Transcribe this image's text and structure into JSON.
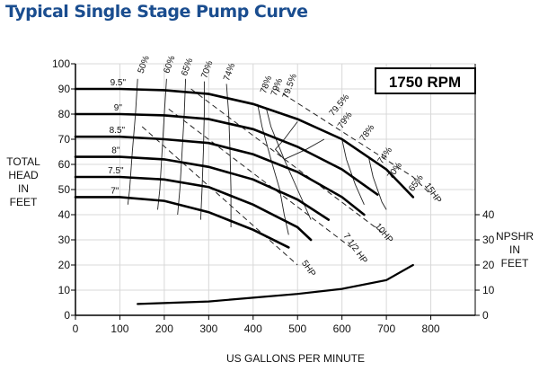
{
  "page_title": "Typical Single Stage Pump Curve",
  "chart_data": {
    "type": "line",
    "title": "Typical Single Stage Pump Curve",
    "rpm_label": "1750 RPM",
    "xlabel": "US GALLONS PER MINUTE",
    "ylabel_left": [
      "TOTAL",
      "HEAD",
      "IN",
      "FEET"
    ],
    "ylabel_right": [
      "NPSHR",
      "IN",
      "FEET"
    ],
    "xlim": [
      0,
      900
    ],
    "ylim": [
      0,
      100
    ],
    "x_ticks": [
      0,
      100,
      200,
      300,
      400,
      500,
      600,
      700,
      800
    ],
    "y_ticks": [
      0,
      10,
      20,
      30,
      40,
      50,
      60,
      70,
      80,
      90,
      100
    ],
    "npshr_ticks": [
      0,
      10,
      20,
      30,
      40
    ],
    "head_curves": [
      {
        "name": "9.5\"",
        "points": [
          [
            0,
            90
          ],
          [
            100,
            90
          ],
          [
            200,
            89.5
          ],
          [
            300,
            88
          ],
          [
            400,
            84
          ],
          [
            500,
            78
          ],
          [
            600,
            70
          ],
          [
            700,
            58
          ],
          [
            760,
            47
          ]
        ]
      },
      {
        "name": "9\"",
        "points": [
          [
            0,
            80
          ],
          [
            100,
            80
          ],
          [
            200,
            79.5
          ],
          [
            300,
            78
          ],
          [
            400,
            74
          ],
          [
            500,
            67
          ],
          [
            600,
            58
          ],
          [
            680,
            48
          ]
        ]
      },
      {
        "name": "8.5\"",
        "points": [
          [
            0,
            71
          ],
          [
            100,
            71
          ],
          [
            200,
            70
          ],
          [
            300,
            68.5
          ],
          [
            400,
            64
          ],
          [
            500,
            57
          ],
          [
            600,
            47
          ],
          [
            650,
            40
          ]
        ]
      },
      {
        "name": "8\"",
        "points": [
          [
            0,
            63
          ],
          [
            100,
            63
          ],
          [
            200,
            62
          ],
          [
            300,
            59
          ],
          [
            400,
            54
          ],
          [
            500,
            46
          ],
          [
            570,
            38
          ]
        ]
      },
      {
        "name": "7.5\"",
        "points": [
          [
            0,
            55
          ],
          [
            100,
            55
          ],
          [
            200,
            54
          ],
          [
            300,
            51
          ],
          [
            400,
            44
          ],
          [
            500,
            35
          ],
          [
            530,
            30
          ]
        ]
      },
      {
        "name": "7\"",
        "points": [
          [
            0,
            47
          ],
          [
            100,
            47
          ],
          [
            200,
            45.5
          ],
          [
            300,
            41
          ],
          [
            400,
            34
          ],
          [
            480,
            27
          ]
        ]
      }
    ],
    "efficiency_labels": [
      "50%",
      "60%",
      "65%",
      "70%",
      "74%",
      "78%",
      "79%",
      "79.5%",
      "79.5%",
      "79%",
      "78%",
      "74%",
      "70%",
      "65%"
    ],
    "efficiency_contours": [
      {
        "points": [
          [
            140,
            94
          ],
          [
            135,
            80
          ],
          [
            128,
            65
          ],
          [
            122,
            50
          ],
          [
            118,
            44
          ]
        ]
      },
      {
        "points": [
          [
            205,
            94
          ],
          [
            200,
            80
          ],
          [
            195,
            65
          ],
          [
            190,
            50
          ],
          [
            185,
            42
          ]
        ]
      },
      {
        "points": [
          [
            248,
            94
          ],
          [
            245,
            80
          ],
          [
            240,
            65
          ],
          [
            235,
            50
          ],
          [
            230,
            40
          ]
        ]
      },
      {
        "points": [
          [
            290,
            93
          ],
          [
            290,
            80
          ],
          [
            288,
            65
          ],
          [
            285,
            50
          ],
          [
            282,
            38
          ]
        ]
      },
      {
        "points": [
          [
            340,
            92
          ],
          [
            345,
            80
          ],
          [
            348,
            65
          ],
          [
            350,
            50
          ],
          [
            350,
            35
          ]
        ]
      },
      {
        "points": [
          [
            410,
            84
          ],
          [
            420,
            75
          ],
          [
            440,
            62
          ],
          [
            460,
            50
          ],
          [
            470,
            40
          ],
          [
            480,
            32
          ]
        ]
      },
      {
        "points": [
          [
            430,
            82
          ],
          [
            440,
            75
          ],
          [
            470,
            62
          ],
          [
            500,
            50
          ],
          [
            530,
            38
          ]
        ]
      },
      {
        "points": [
          [
            500,
            77
          ],
          [
            470,
            70
          ],
          [
            450,
            66
          ],
          [
            470,
            62
          ],
          [
            520,
            66
          ],
          [
            560,
            70
          ]
        ]
      },
      {
        "points": [
          [
            600,
            70
          ],
          [
            610,
            62
          ],
          [
            630,
            52
          ],
          [
            650,
            44
          ]
        ]
      },
      {
        "points": [
          [
            660,
            63
          ],
          [
            670,
            55
          ],
          [
            690,
            45
          ],
          [
            700,
            42
          ]
        ]
      }
    ],
    "power_lines": [
      {
        "name": "5HP",
        "points": [
          [
            150,
            75
          ],
          [
            500,
            20
          ]
        ]
      },
      {
        "name": "7 1/2 HP",
        "points": [
          [
            210,
            82
          ],
          [
            620,
            27
          ]
        ]
      },
      {
        "name": "10HP",
        "points": [
          [
            260,
            90
          ],
          [
            690,
            33
          ]
        ]
      },
      {
        "name": "15HP",
        "points": [
          [
            450,
            90
          ],
          [
            760,
            55
          ],
          [
            800,
            48
          ]
        ]
      }
    ],
    "npshr_curve": {
      "name": "NPSHR",
      "points": [
        [
          140,
          4.5
        ],
        [
          300,
          5.5
        ],
        [
          400,
          7
        ],
        [
          500,
          8.5
        ],
        [
          600,
          10.5
        ],
        [
          700,
          14
        ],
        [
          760,
          20
        ]
      ]
    }
  }
}
